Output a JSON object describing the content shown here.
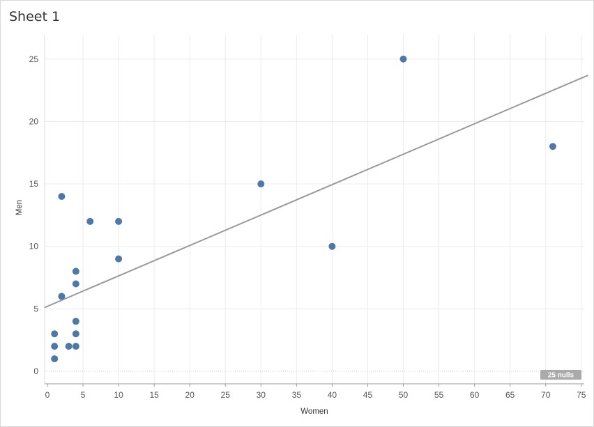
{
  "sheet": {
    "title": "Sheet 1"
  },
  "nulls_badge": "25 nulls",
  "colors": {
    "point": "#4e79a7",
    "trend": "#999999",
    "grid": "#ececec"
  },
  "chart_data": {
    "type": "scatter",
    "title": "",
    "xlabel": "Women",
    "ylabel": "Men",
    "xlim": [
      0,
      76
    ],
    "ylim": [
      0,
      26
    ],
    "xticks": [
      0,
      5,
      10,
      15,
      20,
      25,
      30,
      35,
      40,
      45,
      50,
      55,
      60,
      65,
      70,
      75
    ],
    "yticks": [
      0,
      5,
      10,
      15,
      20,
      25
    ],
    "grid": true,
    "points": [
      {
        "x": 1,
        "y": 1
      },
      {
        "x": 1,
        "y": 2
      },
      {
        "x": 1,
        "y": 3
      },
      {
        "x": 2,
        "y": 6
      },
      {
        "x": 2,
        "y": 14
      },
      {
        "x": 3,
        "y": 2
      },
      {
        "x": 4,
        "y": 2
      },
      {
        "x": 4,
        "y": 3
      },
      {
        "x": 4,
        "y": 4
      },
      {
        "x": 4,
        "y": 7
      },
      {
        "x": 4,
        "y": 8
      },
      {
        "x": 6,
        "y": 12
      },
      {
        "x": 10,
        "y": 9
      },
      {
        "x": 10,
        "y": 12
      },
      {
        "x": 30,
        "y": 15
      },
      {
        "x": 40,
        "y": 10
      },
      {
        "x": 50,
        "y": 25
      },
      {
        "x": 71,
        "y": 18
      }
    ],
    "trend_line": {
      "intercept": 5.2,
      "slope": 0.2436
    }
  }
}
